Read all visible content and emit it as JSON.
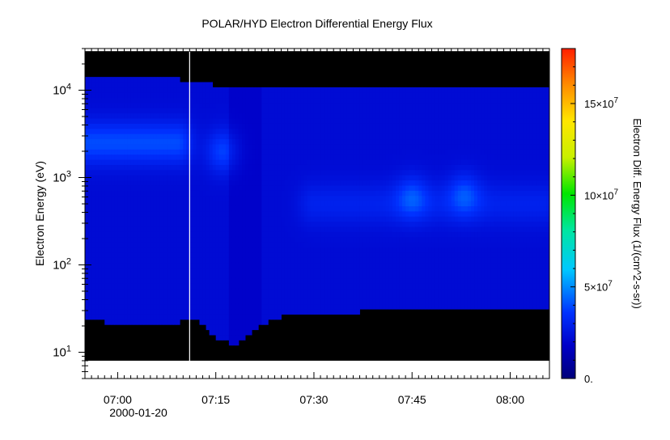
{
  "chart_data": {
    "type": "heatmap",
    "title": "POLAR/HYD  Electron Differential Energy Flux",
    "ylabel": "Electron Energy (eV)",
    "y_scale": "log",
    "ylim": [
      5,
      30000
    ],
    "y_ticks": [
      {
        "value": 10,
        "base": "10",
        "exp": "1"
      },
      {
        "value": 100,
        "base": "10",
        "exp": "2"
      },
      {
        "value": 1000,
        "base": "10",
        "exp": "3"
      },
      {
        "value": 10000,
        "base": "10",
        "exp": "4"
      }
    ],
    "x_unit": "minutes",
    "xlim": [
      "06:55",
      "08:06"
    ],
    "x_ticks": [
      "07:00",
      "07:15",
      "07:30",
      "07:45",
      "08:00"
    ],
    "x_date_label": "2000-01-20",
    "colorbar": {
      "label": "Electron Diff. Energy Flux (1/(cm^2-s-sr))",
      "range": [
        0,
        180000000
      ],
      "ticks": [
        {
          "value": 0,
          "label": "0."
        },
        {
          "value": 50000000,
          "label": "5×10",
          "exp": "7"
        },
        {
          "value": 100000000,
          "label": "10×10",
          "exp": "7"
        },
        {
          "value": 150000000,
          "label": "15×10",
          "exp": "7"
        }
      ]
    },
    "data_coverage": {
      "energy_range_eV": [
        8,
        28000
      ],
      "instrument_low_cutoff_eV": [
        [
          6.9,
          25
        ],
        [
          7.0,
          21
        ],
        [
          7.1,
          20
        ],
        [
          7.15,
          22
        ],
        [
          7.2,
          24
        ],
        [
          7.25,
          15
        ],
        [
          7.3,
          12
        ],
        [
          7.35,
          18
        ],
        [
          7.4,
          25
        ],
        [
          7.5,
          28
        ],
        [
          7.7,
          30
        ],
        [
          7.9,
          30
        ],
        [
          8.1,
          30
        ]
      ],
      "instrument_high_cutoff_eV": [
        [
          6.9,
          15000
        ],
        [
          7.1,
          15000
        ],
        [
          7.2,
          12000
        ],
        [
          7.3,
          11000
        ],
        [
          7.5,
          11000
        ],
        [
          7.7,
          11000
        ],
        [
          7.9,
          11000
        ],
        [
          8.1,
          11000
        ]
      ],
      "flux_peaks": [
        {
          "time": "06:55-07:09",
          "energy_eV": 2500,
          "flux": 40000000
        },
        {
          "time": "07:16",
          "energy_eV": 2000,
          "flux": 38000000
        },
        {
          "time": "07:30-08:05",
          "energy_eV": 500,
          "flux": 30000000
        },
        {
          "time": "07:45",
          "energy_eV": 600,
          "flux": 36000000
        },
        {
          "time": "07:53",
          "energy_eV": 650,
          "flux": 36000000
        }
      ],
      "background_flux": 22000000
    },
    "marker_time": "07:11"
  }
}
